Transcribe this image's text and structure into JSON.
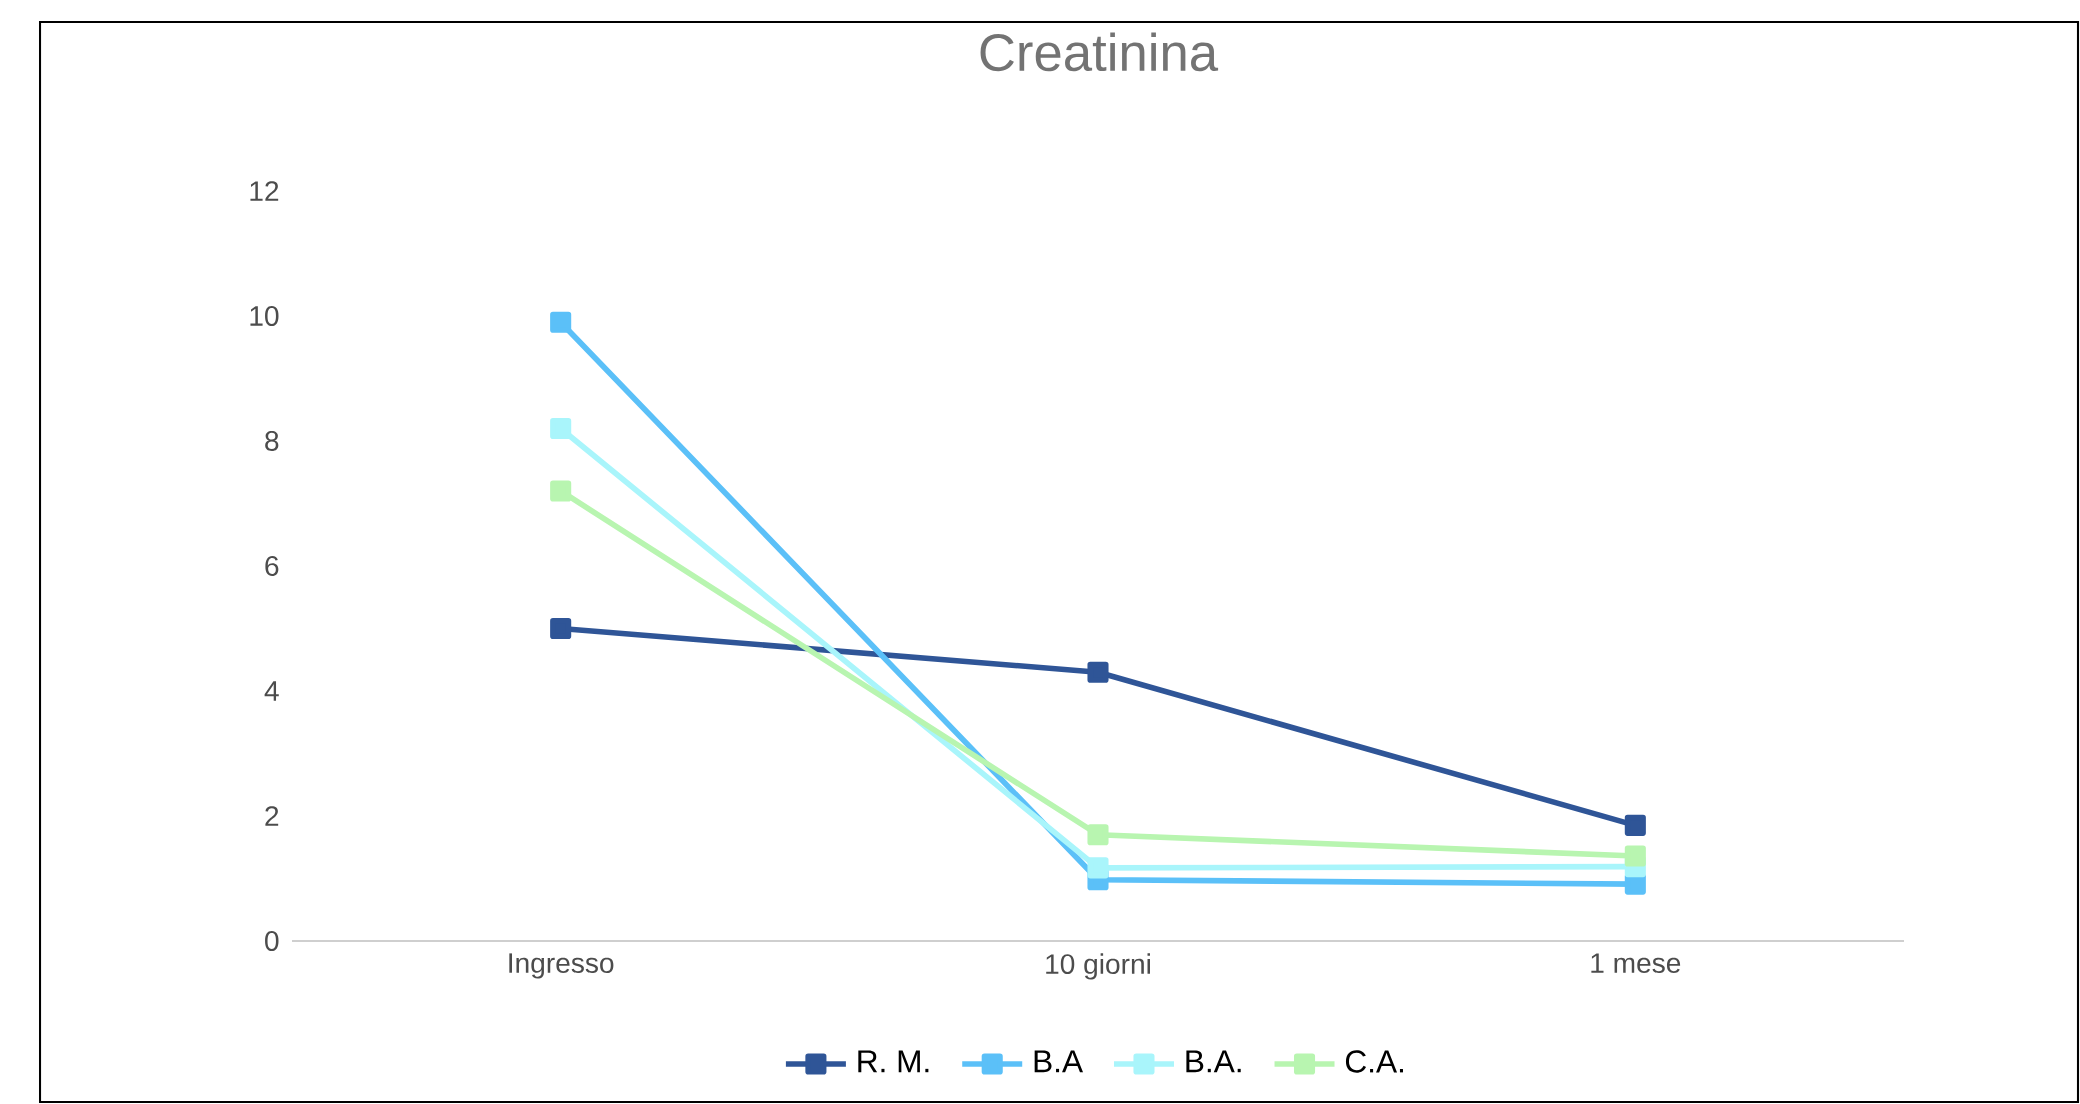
{
  "chart_data": {
    "type": "line",
    "title": "Creatinina",
    "categories": [
      "Ingresso",
      "10 giorni",
      "1 mese"
    ],
    "series": [
      {
        "name": "R. M.",
        "color": "#2f5597",
        "values": [
          5.0,
          4.3,
          1.85
        ]
      },
      {
        "name": "B.A",
        "color": "#5bc0f8",
        "values": [
          9.9,
          0.98,
          0.91
        ]
      },
      {
        "name": "B.A.",
        "color": "#a9f5fb",
        "values": [
          8.2,
          1.17,
          1.19
        ]
      },
      {
        "name": "C.A.",
        "color": "#b8f5b0",
        "values": [
          7.2,
          1.7,
          1.36
        ]
      }
    ],
    "ylim": [
      0,
      12
    ],
    "yticks": [
      0,
      2,
      4,
      6,
      8,
      10,
      12
    ],
    "marker": "square",
    "legend": "bottom",
    "grid": false
  }
}
